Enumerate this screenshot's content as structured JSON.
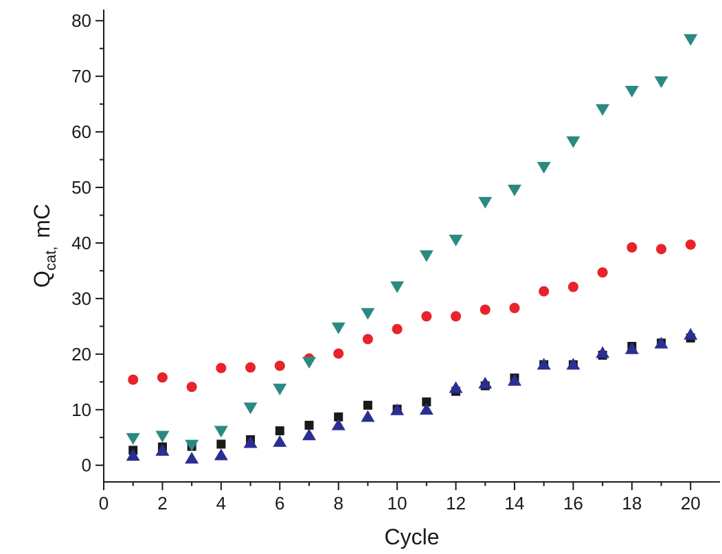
{
  "chart_data": {
    "type": "scatter",
    "title": "",
    "xlabel": "Cycle",
    "ylabel": {
      "main": "Q",
      "sub": "cat,",
      "unit": "mC"
    },
    "xlim": [
      0,
      21
    ],
    "ylim": [
      -3,
      82
    ],
    "xticks": [
      0,
      2,
      4,
      6,
      8,
      10,
      12,
      14,
      16,
      18,
      20
    ],
    "yticks": [
      0,
      10,
      20,
      30,
      40,
      50,
      60,
      70,
      80
    ],
    "grid": false,
    "legend": "none",
    "series": [
      {
        "marker": "square",
        "color": "#1a1a1a",
        "x": [
          1,
          2,
          3,
          4,
          5,
          6,
          7,
          8,
          9,
          10,
          11,
          12,
          13,
          14,
          15,
          16,
          17,
          18,
          19,
          20
        ],
        "values": [
          2.7,
          3.3,
          3.4,
          3.8,
          4.6,
          6.2,
          7.2,
          8.7,
          10.8,
          10.1,
          11.4,
          13.3,
          14.3,
          15.7,
          18.1,
          18.1,
          19.8,
          21.4,
          22.0,
          22.9
        ]
      },
      {
        "marker": "circle",
        "color": "#e8232b",
        "x": [
          1,
          2,
          3,
          4,
          5,
          6,
          7,
          8,
          9,
          10,
          11,
          12,
          13,
          14,
          15,
          16,
          17,
          18,
          19,
          20
        ],
        "values": [
          15.4,
          15.8,
          14.1,
          17.5,
          17.6,
          17.9,
          19.2,
          20.1,
          22.7,
          24.5,
          26.8,
          26.8,
          28.0,
          28.3,
          31.3,
          32.1,
          34.7,
          39.2,
          38.9,
          39.7
        ]
      },
      {
        "marker": "triangle-up",
        "color": "#2b2e92",
        "x": [
          1,
          2,
          3,
          4,
          5,
          6,
          7,
          8,
          9,
          10,
          11,
          12,
          13,
          14,
          15,
          16,
          17,
          18,
          19,
          20
        ],
        "values": [
          1.8,
          2.7,
          1.3,
          1.9,
          4.1,
          4.3,
          5.5,
          7.3,
          8.8,
          10.0,
          10.1,
          14.0,
          14.8,
          15.3,
          18.2,
          18.2,
          20.3,
          21.0,
          22.0,
          23.6
        ]
      },
      {
        "marker": "triangle-down",
        "color": "#2a8a82",
        "x": [
          1,
          2,
          3,
          4,
          5,
          6,
          7,
          8,
          9,
          10,
          11,
          12,
          13,
          14,
          15,
          16,
          17,
          18,
          19,
          20
        ],
        "values": [
          4.8,
          5.2,
          3.6,
          6.1,
          10.3,
          13.7,
          18.5,
          24.7,
          27.3,
          32.1,
          37.7,
          40.5,
          47.3,
          49.5,
          53.6,
          58.2,
          64.0,
          67.3,
          69.0,
          76.6
        ]
      }
    ]
  }
}
